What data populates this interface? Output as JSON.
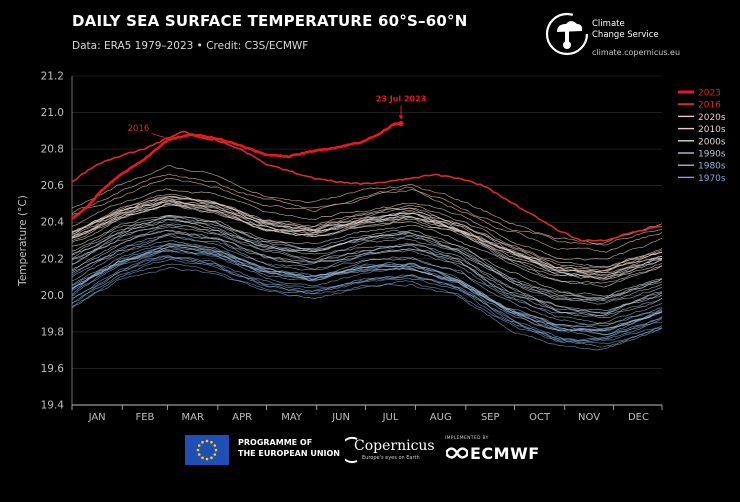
{
  "header": {
    "title": "DAILY SEA SURFACE TEMPERATURE 60°S–60°N",
    "subtitle": "Data: ERA5 1979–2023 • Credit: C3S/ECMWF"
  },
  "brand": {
    "line1": "Climate",
    "line2": "Change Service",
    "url": "climate.copernicus.eu"
  },
  "footer": {
    "eu_line1": "PROGRAMME OF",
    "eu_line2": "THE EUROPEAN UNION",
    "copernicus": "Copernicus",
    "copernicus_sub": "Europe's eyes on Earth",
    "ecmwf_implemented": "IMPLEMENTED BY",
    "ecmwf": "ECMWF"
  },
  "colors": {
    "c2023": "#e8191c",
    "c2016": "#d62d2a",
    "c2020s": "#f2c6b6",
    "c2010s": "#e8cfc6",
    "c2000s": "#d9d9d9",
    "c1990s": "#b7c4d2",
    "c1980s": "#98b6d3",
    "c1970s": "#7fa7d4",
    "axis": "#bfbfbf",
    "grid": "#333333"
  },
  "chart_data": {
    "type": "line",
    "title": "DAILY SEA SURFACE TEMPERATURE 60°S–60°N",
    "ylabel": "Temperature (°C)",
    "xlabel": "",
    "ylim": [
      19.4,
      21.2
    ],
    "yticks": [
      "19.4",
      "19.6",
      "19.8",
      "20.0",
      "20.2",
      "20.4",
      "20.6",
      "20.8",
      "21.0",
      "21.2"
    ],
    "months": [
      "JAN",
      "FEB",
      "MAR",
      "APR",
      "MAY",
      "JUN",
      "JUL",
      "AUG",
      "SEP",
      "OCT",
      "NOV",
      "DEC"
    ],
    "legend": [
      {
        "label": "2023",
        "color": "#e8191c"
      },
      {
        "label": "2016",
        "color": "#d62d2a"
      },
      {
        "label": "2020s",
        "color": "#f2c6b6"
      },
      {
        "label": "2010s",
        "color": "#e8cfc6"
      },
      {
        "label": "2000s",
        "color": "#d9d9d9"
      },
      {
        "label": "1990s",
        "color": "#b7c4d2"
      },
      {
        "label": "1980s",
        "color": "#98b6d3"
      },
      {
        "label": "1970s",
        "color": "#7fa7d4"
      }
    ],
    "annotations": {
      "label_2016": "2016",
      "label_2023": "23 Jul 2023"
    },
    "series": [
      {
        "name": "2023",
        "x_days": [
          1,
          10,
          20,
          31,
          45,
          60,
          75,
          90,
          105,
          120,
          135,
          150,
          165,
          180,
          190,
          200,
          204
        ],
        "values": [
          20.42,
          20.48,
          20.58,
          20.66,
          20.74,
          20.85,
          20.88,
          20.86,
          20.82,
          20.77,
          20.76,
          20.79,
          20.81,
          20.84,
          20.88,
          20.94,
          20.94
        ]
      },
      {
        "name": "2016",
        "x_days": [
          1,
          15,
          30,
          45,
          60,
          70,
          80,
          90,
          105,
          120,
          135,
          150,
          165,
          180,
          195,
          210,
          225,
          240,
          255,
          270,
          285,
          300,
          315,
          330,
          345,
          365
        ],
        "values": [
          20.62,
          20.71,
          20.76,
          20.8,
          20.86,
          20.9,
          20.86,
          20.85,
          20.8,
          20.72,
          20.68,
          20.64,
          20.62,
          20.61,
          20.62,
          20.64,
          20.66,
          20.64,
          20.6,
          20.52,
          20.44,
          20.36,
          20.3,
          20.3,
          20.34,
          20.38
        ]
      },
      {
        "name": "2020s",
        "x_days": [
          1,
          30,
          60,
          90,
          120,
          150,
          180,
          210,
          240,
          270,
          300,
          330,
          365
        ],
        "values": [
          20.48,
          20.6,
          20.7,
          20.66,
          20.56,
          20.52,
          20.58,
          20.62,
          20.52,
          20.4,
          20.32,
          20.3,
          20.4
        ]
      },
      {
        "name": "2010s",
        "x_days": [
          1,
          30,
          60,
          90,
          120,
          150,
          180,
          210,
          240,
          270,
          300,
          330,
          365
        ],
        "values": [
          20.36,
          20.48,
          20.56,
          20.52,
          20.42,
          20.38,
          20.44,
          20.48,
          20.4,
          20.28,
          20.18,
          20.16,
          20.26
        ]
      },
      {
        "name": "2000s",
        "x_days": [
          1,
          30,
          60,
          90,
          120,
          150,
          180,
          210,
          240,
          270,
          300,
          330,
          365
        ],
        "values": [
          20.28,
          20.4,
          20.48,
          20.44,
          20.34,
          20.3,
          20.36,
          20.4,
          20.32,
          20.18,
          20.08,
          20.06,
          20.16
        ]
      },
      {
        "name": "1990s",
        "x_days": [
          1,
          30,
          60,
          90,
          120,
          150,
          180,
          210,
          240,
          270,
          300,
          330,
          365
        ],
        "values": [
          20.18,
          20.32,
          20.4,
          20.36,
          20.26,
          20.22,
          20.28,
          20.3,
          20.22,
          20.06,
          19.96,
          19.94,
          20.04
        ]
      },
      {
        "name": "1980s",
        "x_days": [
          1,
          30,
          60,
          90,
          120,
          150,
          180,
          210,
          240,
          270,
          300,
          330,
          365
        ],
        "values": [
          20.08,
          20.22,
          20.3,
          20.26,
          20.16,
          20.12,
          20.18,
          20.2,
          20.12,
          19.96,
          19.86,
          19.84,
          19.94
        ]
      },
      {
        "name": "1970s",
        "x_days": [
          1,
          30,
          60,
          90,
          120,
          150,
          180,
          210,
          240,
          270,
          300,
          330,
          365
        ],
        "values": [
          19.98,
          20.14,
          20.22,
          20.18,
          20.08,
          20.04,
          20.1,
          20.12,
          20.04,
          19.88,
          19.78,
          19.76,
          19.86
        ]
      }
    ]
  }
}
